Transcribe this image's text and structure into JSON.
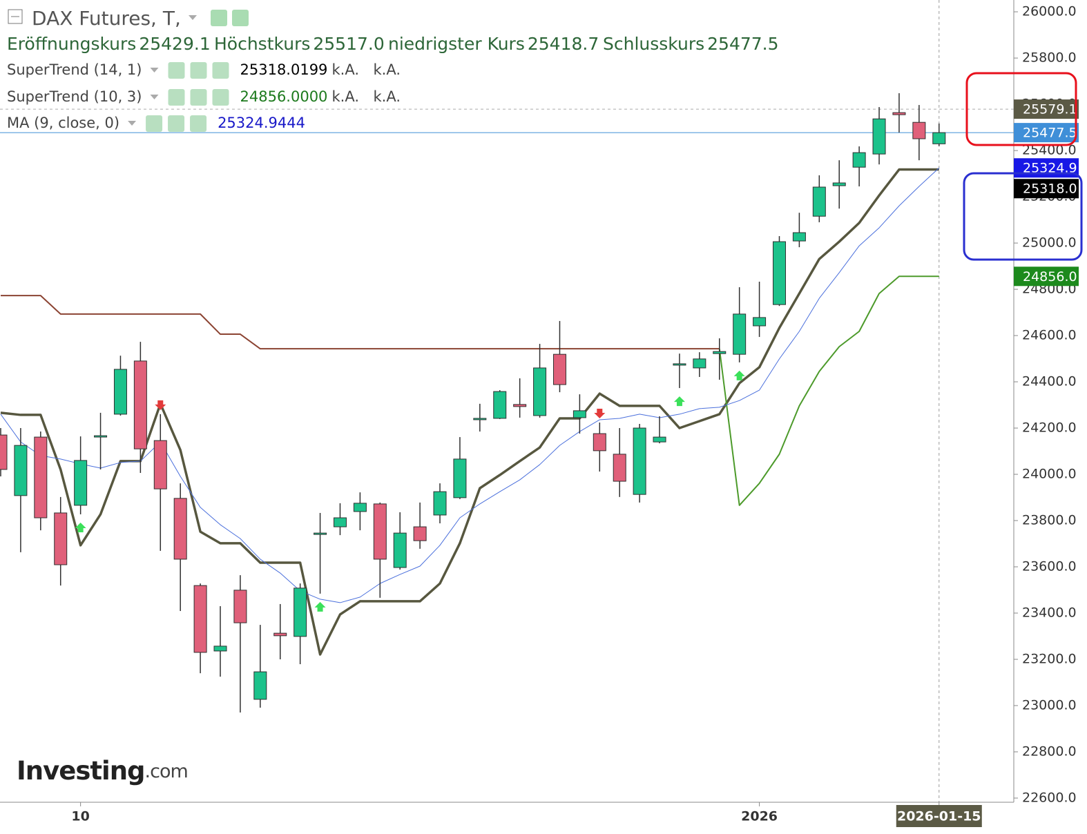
{
  "header": {
    "title": "DAX Futures, T,",
    "ohlc_labels": [
      "Eröffnungskurs",
      "Höchstkurs",
      "niedrigster Kurs",
      "Schlusskurs"
    ],
    "ohlc_values": [
      "25429.1",
      "25517.0",
      "25418.7",
      "25477.5"
    ],
    "indicator_values": [
      "25318.0199",
      "24856.0000",
      "25324.9444"
    ],
    "na_text": "k.A."
  },
  "watermark": {
    "brand": "Investing",
    "suffix": ".com"
  },
  "chart_data": {
    "type": "candlestick",
    "categories": [
      null,
      null,
      null,
      null,
      "10",
      null,
      null,
      null,
      null,
      null,
      null,
      null,
      null,
      null,
      null,
      null,
      null,
      null,
      null,
      null,
      null,
      null,
      null,
      null,
      null,
      null,
      null,
      null,
      null,
      null,
      null,
      null,
      null,
      null,
      null,
      null,
      null,
      null,
      "2026",
      null,
      null,
      null,
      null,
      null,
      null,
      null,
      null,
      "2026-01-15"
    ],
    "ohlc": {
      "open": [
        24170,
        23908,
        24161,
        23833,
        23866,
        24164,
        24260,
        24490,
        24146,
        23896,
        23519,
        23236,
        23499,
        23027,
        23313,
        23299,
        23740,
        23773,
        23839,
        23872,
        23597,
        23773,
        23824,
        23899,
        24236,
        24242,
        24302,
        24254,
        24519,
        24245,
        24176,
        24087,
        23913,
        24140,
        24472,
        24460,
        24522,
        24519,
        24642,
        24734,
        25009,
        25116,
        25248,
        25328,
        25385,
        25564,
        25522,
        25429.1
      ],
      "high": [
        24200,
        24200,
        24185,
        23902,
        24164,
        24266,
        24513,
        24573,
        24260,
        23961,
        23528,
        23430,
        23564,
        23349,
        23439,
        23528,
        23833,
        23875,
        23922,
        23878,
        23836,
        23878,
        23961,
        24161,
        24305,
        24364,
        24415,
        24564,
        24663,
        24346,
        24224,
        24200,
        24218,
        24251,
        24522,
        24528,
        24588,
        24809,
        24833,
        25030,
        25131,
        25293,
        25358,
        25418,
        25588,
        25648,
        25597,
        25517
      ],
      "low": [
        23991,
        23663,
        23758,
        23519,
        23827,
        24021,
        24254,
        24006,
        23669,
        23409,
        23140,
        23125,
        22970,
        22991,
        23200,
        23179,
        23484,
        23737,
        23758,
        23466,
        23588,
        23678,
        23788,
        23893,
        24185,
        24239,
        24245,
        24245,
        24355,
        24176,
        24012,
        23902,
        23878,
        24134,
        24373,
        24421,
        24409,
        24484,
        24594,
        24728,
        24982,
        25090,
        25149,
        25245,
        25340,
        25478,
        25358,
        25418.7
      ],
      "close": [
        24021,
        24125,
        23812,
        23609,
        24060,
        24167,
        24454,
        24110,
        23937,
        23633,
        23230,
        23257,
        23358,
        23146,
        23302,
        23508,
        23746,
        23812,
        23875,
        23633,
        23746,
        23713,
        23925,
        24066,
        24242,
        24358,
        24293,
        24460,
        24388,
        24275,
        24102,
        23970,
        24200,
        24161,
        24478,
        24499,
        24531,
        24693,
        24678,
        25006,
        25045,
        25242,
        25260,
        25391,
        25537,
        25555,
        25451,
        25477.5
      ]
    },
    "up_color": "#1cc28b",
    "down_color": "#e0607a",
    "outline_color": "#2f2f2f",
    "series": [
      {
        "name": "SuperTrend (14, 1)",
        "color": "#57573f",
        "values": [
          24266,
          24257,
          24257,
          24021,
          23693,
          23827,
          24057,
          24057,
          24305,
          24105,
          23752,
          23702,
          23702,
          23618,
          23618,
          23618,
          23221,
          23394,
          23451,
          23451,
          23451,
          23451,
          23528,
          23702,
          23940,
          23997,
          24057,
          24116,
          24242,
          24242,
          24349,
          24296,
          24296,
          24296,
          24200,
          24230,
          24260,
          24394,
          24463,
          24633,
          24782,
          24931,
          25006,
          25087,
          25206,
          25318,
          25318,
          25318.0199
        ]
      },
      {
        "name": "SuperTrend (10, 3)",
        "color": "#4c9a2a",
        "down_color": "#8b4332",
        "upper": [
          24773,
          24773,
          24773,
          24693,
          24693,
          24693,
          24693,
          24693,
          24693,
          24693,
          24693,
          24606,
          24606,
          24543,
          24543,
          24543,
          24543,
          24543,
          24543,
          24543,
          24543,
          24543,
          24543,
          24543,
          24543,
          24543,
          24543,
          24543,
          24543,
          24543,
          24543,
          24543,
          24543,
          24543,
          24543,
          24543,
          24543,
          null,
          null,
          null,
          null,
          null,
          null,
          null,
          null,
          null,
          null,
          null
        ],
        "lower": [
          null,
          null,
          null,
          null,
          null,
          null,
          null,
          null,
          null,
          null,
          null,
          null,
          null,
          null,
          null,
          null,
          null,
          null,
          null,
          null,
          null,
          null,
          null,
          null,
          null,
          null,
          null,
          null,
          null,
          null,
          null,
          null,
          null,
          null,
          null,
          null,
          24543,
          23866,
          23961,
          24087,
          24296,
          24445,
          24552,
          24618,
          24782,
          24856,
          24856,
          24856
        ]
      },
      {
        "name": "MA (9, close, 0)",
        "color": "#4a6fdc",
        "values": [
          24260,
          24140,
          24081,
          24066,
          24045,
          24027,
          24051,
          24057,
          24140,
          23991,
          23857,
          23782,
          23722,
          23633,
          23573,
          23496,
          23460,
          23445,
          23469,
          23528,
          23567,
          23603,
          23693,
          23812,
          23872,
          23925,
          23976,
          24042,
          24125,
          24185,
          24236,
          24242,
          24260,
          24245,
          24260,
          24284,
          24290,
          24319,
          24364,
          24499,
          24618,
          24761,
          24872,
          24988,
          25066,
          25161,
          25245,
          25324.9444
        ]
      }
    ],
    "signals": [
      null,
      null,
      null,
      null,
      "up",
      null,
      null,
      null,
      "down",
      null,
      null,
      null,
      null,
      null,
      null,
      null,
      "up",
      null,
      null,
      null,
      null,
      null,
      null,
      null,
      null,
      null,
      null,
      null,
      null,
      null,
      "down",
      null,
      null,
      null,
      "up",
      null,
      null,
      "up",
      null,
      null,
      null,
      null,
      null,
      null,
      null,
      null,
      null,
      null
    ],
    "price_tags": [
      {
        "value": 25579.1,
        "label": "25579.1",
        "color": "#5b5a45",
        "line": "dashed"
      },
      {
        "value": 25477.5,
        "label": "25477.5",
        "color": "#3f8fd8",
        "line": "solid"
      },
      {
        "value": 25324.9,
        "label": "25324.9",
        "color": "#1818e6"
      },
      {
        "value": 25318.0,
        "label": "25318.0",
        "color": "#000000"
      },
      {
        "value": 24856.0,
        "label": "24856.0",
        "color": "#1d8a1d"
      }
    ],
    "ylim": [
      22582,
      26051
    ],
    "yticks": [
      {
        "value": 22600,
        "label": "22600.0"
      },
      {
        "value": 22800,
        "label": "22800.0"
      },
      {
        "value": 23000,
        "label": "23000.0"
      },
      {
        "value": 23200,
        "label": "23200.0"
      },
      {
        "value": 23400,
        "label": "23400.0"
      },
      {
        "value": 23600,
        "label": "23600.0"
      },
      {
        "value": 23800,
        "label": "23800.0"
      },
      {
        "value": 24000,
        "label": "24000.0"
      },
      {
        "value": 24200,
        "label": "24200.0"
      },
      {
        "value": 24400,
        "label": "24400.0"
      },
      {
        "value": 24600,
        "label": "24600.0"
      },
      {
        "value": 24800,
        "label": "24800.0"
      },
      {
        "value": 25000,
        "label": "25000.0"
      },
      {
        "value": 25200,
        "label": "25200.0"
      },
      {
        "value": 25400,
        "label": "25400.0"
      },
      {
        "value": 25600,
        "label": "25600.0"
      },
      {
        "value": 25800,
        "label": "25800.0"
      },
      {
        "value": 26000,
        "label": "26000.0"
      }
    ]
  }
}
